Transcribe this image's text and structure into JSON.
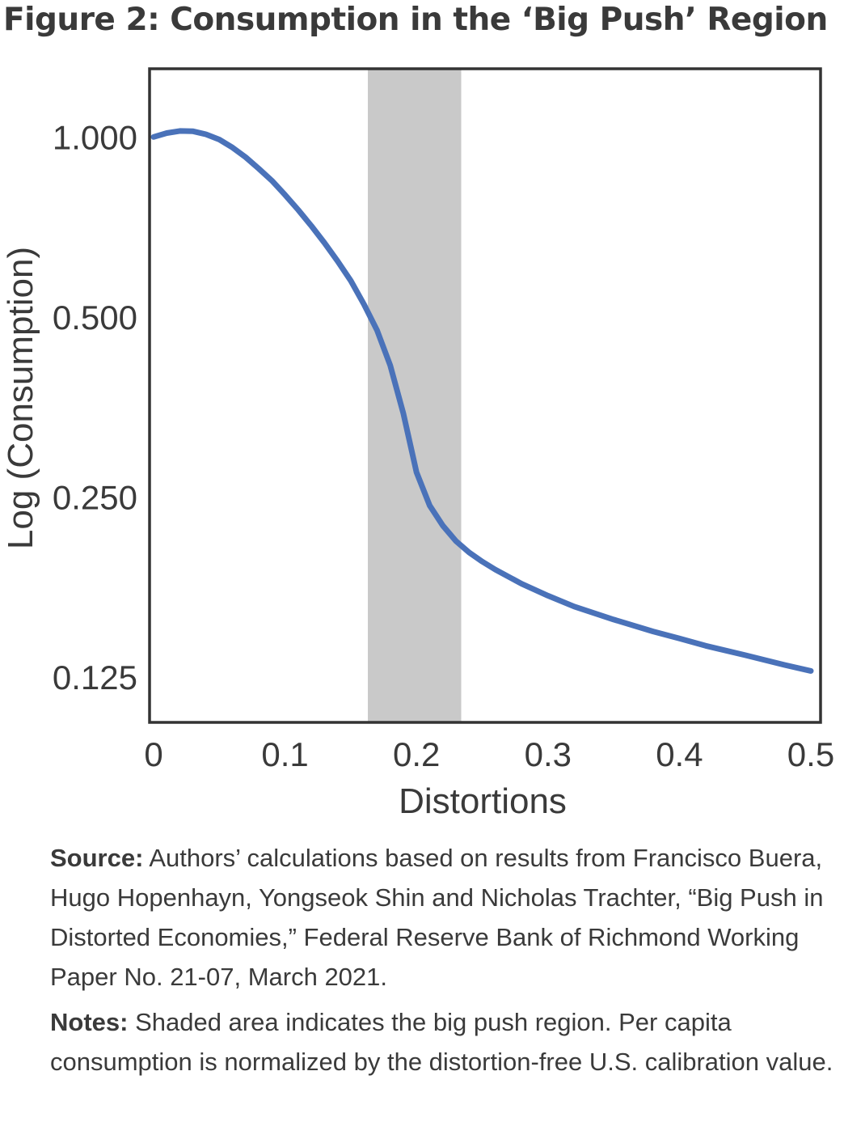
{
  "title": "Figure 2: Consumption in the ‘Big Push’ Region",
  "source": {
    "label": "Source:",
    "text": " Authors’ calculations based on results from Francisco Buera, Hugo Hopenhayn, Yongseok Shin and Nicholas Trachter, “Big Push in Distorted Economies,” Federal Reserve Bank of Richmond Working Paper No. 21-07, March 2021."
  },
  "notes": {
    "label": "Notes:",
    "text": " Shaded area indicates the big push region. Per capita consumption is normalized by the distortion-free U.S. calibration value."
  },
  "chart_data": {
    "type": "line",
    "xlabel": "Distortions",
    "ylabel": "Log (Consumption)",
    "xlim": [
      0,
      0.5
    ],
    "ylim": [
      0.105,
      1.3
    ],
    "yscale": "log2",
    "xticks": [
      0,
      0.1,
      0.2,
      0.3,
      0.4,
      0.5
    ],
    "xtick_labels": [
      "0",
      "0.1",
      "0.2",
      "0.3",
      "0.4",
      "0.5"
    ],
    "yticks": [
      1.0,
      0.5,
      0.25,
      0.125
    ],
    "ytick_labels": [
      "1.000",
      "0.500",
      "0.250",
      "0.125"
    ],
    "grid": false,
    "shaded_region": {
      "x_start": 0.163,
      "x_end": 0.234,
      "color": "#c9c9c9"
    },
    "series": [
      {
        "color": "#4a72b9",
        "x": [
          0,
          0.01,
          0.02,
          0.03,
          0.04,
          0.05,
          0.06,
          0.07,
          0.08,
          0.09,
          0.1,
          0.11,
          0.12,
          0.13,
          0.14,
          0.15,
          0.16,
          0.17,
          0.18,
          0.19,
          0.2,
          0.21,
          0.22,
          0.23,
          0.24,
          0.25,
          0.26,
          0.28,
          0.3,
          0.32,
          0.35,
          0.38,
          0.4,
          0.42,
          0.45,
          0.48,
          0.5
        ],
        "y": [
          1.0,
          1.015,
          1.023,
          1.022,
          1.01,
          0.99,
          0.96,
          0.925,
          0.885,
          0.845,
          0.8,
          0.755,
          0.71,
          0.665,
          0.62,
          0.575,
          0.525,
          0.475,
          0.415,
          0.345,
          0.275,
          0.242,
          0.224,
          0.211,
          0.202,
          0.195,
          0.189,
          0.179,
          0.171,
          0.164,
          0.156,
          0.149,
          0.145,
          0.141,
          0.136,
          0.131,
          0.128
        ]
      }
    ]
  }
}
